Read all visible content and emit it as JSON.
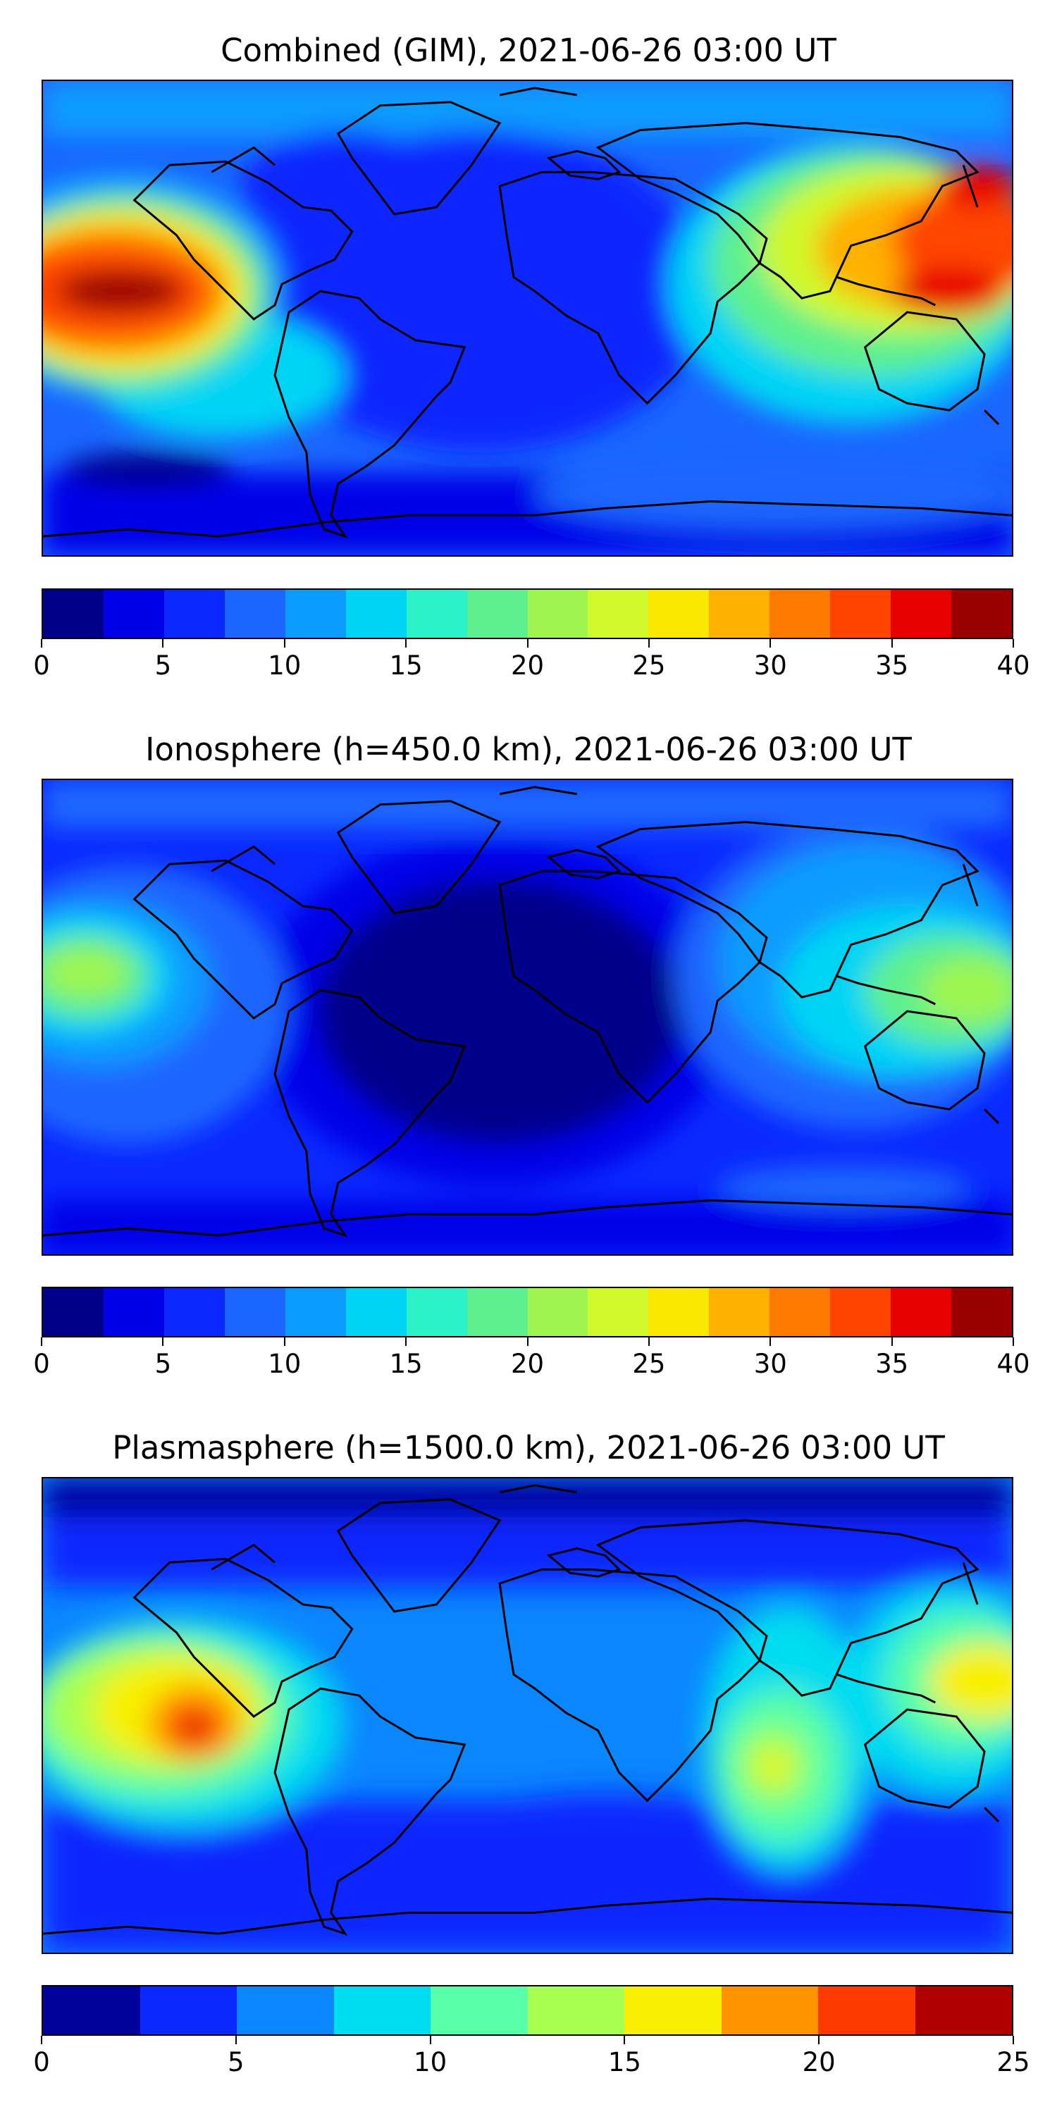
{
  "panels": [
    {
      "title": "Combined (GIM), 2021-06-26 03:00 UT",
      "colorbar": {
        "ticks": [
          "0",
          "5",
          "10",
          "15",
          "20",
          "25",
          "30",
          "35",
          "40"
        ],
        "tick_values": [
          0,
          5,
          10,
          15,
          20,
          25,
          30,
          35,
          40
        ],
        "range": [
          0,
          40
        ],
        "colors": [
          "#00008b",
          "#0000e8",
          "#0a28ff",
          "#1a66ff",
          "#0a9bff",
          "#00d4f5",
          "#2cf2c9",
          "#5ef08e",
          "#9ef550",
          "#d0f82a",
          "#fbe800",
          "#ffb000",
          "#ff7a00",
          "#ff4400",
          "#e80000",
          "#9a0000"
        ]
      }
    },
    {
      "title": "Ionosphere  (h=450.0 km), 2021-06-26 03:00 UT",
      "colorbar": {
        "ticks": [
          "0",
          "5",
          "10",
          "15",
          "20",
          "25",
          "30",
          "35",
          "40"
        ],
        "tick_values": [
          0,
          5,
          10,
          15,
          20,
          25,
          30,
          35,
          40
        ],
        "range": [
          0,
          40
        ],
        "colors": [
          "#00008b",
          "#0000e8",
          "#0a28ff",
          "#1a66ff",
          "#0a9bff",
          "#00d4f5",
          "#2cf2c9",
          "#5ef08e",
          "#9ef550",
          "#d0f82a",
          "#fbe800",
          "#ffb000",
          "#ff7a00",
          "#ff4400",
          "#e80000",
          "#9a0000"
        ]
      }
    },
    {
      "title": "Plasmasphere (h=1500.0 km), 2021-06-26 03:00 UT",
      "colorbar": {
        "ticks": [
          "0",
          "5",
          "10",
          "15",
          "20",
          "25"
        ],
        "tick_values": [
          0,
          5,
          10,
          15,
          20,
          25
        ],
        "range": [
          0,
          25
        ],
        "colors": [
          "#00009b",
          "#0a28ff",
          "#0a86ff",
          "#00dcf0",
          "#56ffa8",
          "#a8ff50",
          "#f8f000",
          "#ff9400",
          "#ff3a00",
          "#b00000"
        ]
      }
    }
  ]
}
